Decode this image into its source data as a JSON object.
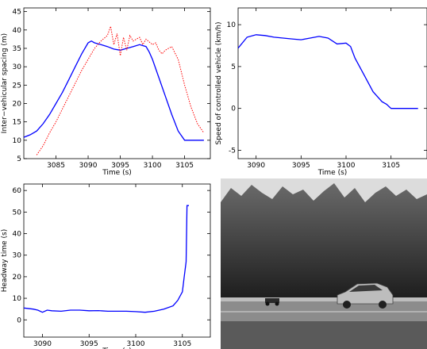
{
  "chart_data": [
    {
      "type": "line",
      "xlabel": "Time (s)",
      "ylabel": "Inter−vehicular spacing (m)",
      "xlim": [
        3080,
        3109
      ],
      "ylim": [
        5,
        46
      ],
      "xticks": [
        3085,
        3090,
        3095,
        3100,
        3105
      ],
      "yticks": [
        5,
        10,
        15,
        20,
        25,
        30,
        35,
        40,
        45
      ],
      "series": [
        {
          "style": "solid",
          "color": "#0000ff",
          "points": [
            [
              3080.0,
              10.8
            ],
            [
              3081.0,
              11.5
            ],
            [
              3082.0,
              12.5
            ],
            [
              3083.0,
              14.5
            ],
            [
              3084.0,
              17.0
            ],
            [
              3085.0,
              20.0
            ],
            [
              3086.0,
              23.0
            ],
            [
              3087.0,
              26.5
            ],
            [
              3088.0,
              30.0
            ],
            [
              3089.0,
              33.5
            ],
            [
              3090.0,
              36.5
            ],
            [
              3090.5,
              37.0
            ],
            [
              3091.0,
              36.5
            ],
            [
              3092.0,
              36.0
            ],
            [
              3093.0,
              35.5
            ],
            [
              3094.0,
              34.8
            ],
            [
              3095.0,
              34.5
            ],
            [
              3096.0,
              35.0
            ],
            [
              3097.0,
              35.5
            ],
            [
              3098.0,
              36.0
            ],
            [
              3099.0,
              35.5
            ],
            [
              3099.5,
              34.0
            ],
            [
              3100.0,
              32.0
            ],
            [
              3101.0,
              27.0
            ],
            [
              3102.0,
              22.0
            ],
            [
              3103.0,
              17.0
            ],
            [
              3104.0,
              12.5
            ],
            [
              3105.0,
              10.0
            ],
            [
              3106.0,
              10.0
            ],
            [
              3108.0,
              10.0
            ]
          ]
        },
        {
          "style": "dotted",
          "color": "#ff0000",
          "points": [
            [
              3082.0,
              6.0
            ],
            [
              3083.0,
              8.5
            ],
            [
              3084.0,
              12.0
            ],
            [
              3085.0,
              15.0
            ],
            [
              3086.0,
              18.5
            ],
            [
              3087.0,
              22.0
            ],
            [
              3088.0,
              25.5
            ],
            [
              3089.0,
              29.0
            ],
            [
              3090.0,
              32.0
            ],
            [
              3091.0,
              35.0
            ],
            [
              3092.0,
              37.0
            ],
            [
              3093.0,
              38.5
            ],
            [
              3093.5,
              41.0
            ],
            [
              3094.0,
              36.0
            ],
            [
              3094.5,
              39.0
            ],
            [
              3095.0,
              33.0
            ],
            [
              3095.5,
              38.0
            ],
            [
              3096.0,
              34.5
            ],
            [
              3096.5,
              38.5
            ],
            [
              3097.0,
              37.0
            ],
            [
              3098.0,
              38.0
            ],
            [
              3098.5,
              36.0
            ],
            [
              3099.0,
              37.5
            ],
            [
              3100.0,
              36.0
            ],
            [
              3100.5,
              36.5
            ],
            [
              3101.0,
              34.5
            ],
            [
              3101.5,
              33.5
            ],
            [
              3102.0,
              34.5
            ],
            [
              3103.0,
              35.5
            ],
            [
              3104.0,
              32.0
            ],
            [
              3105.0,
              25.0
            ],
            [
              3106.0,
              19.0
            ],
            [
              3107.0,
              14.5
            ],
            [
              3108.0,
              12.0
            ]
          ]
        }
      ]
    },
    {
      "type": "line",
      "xlabel": "Time (s)",
      "ylabel": "Speed of controlled vehicle (km/h)",
      "xlim": [
        3088,
        3109
      ],
      "ylim": [
        -6,
        12
      ],
      "xticks": [
        3090,
        3095,
        3100,
        3105
      ],
      "yticks": [
        -5,
        0,
        5,
        10
      ],
      "series": [
        {
          "style": "solid",
          "color": "#0000ff",
          "points": [
            [
              3088.0,
              7.2
            ],
            [
              3089.0,
              8.5
            ],
            [
              3090.0,
              8.8
            ],
            [
              3091.0,
              8.7
            ],
            [
              3092.0,
              8.5
            ],
            [
              3093.0,
              8.4
            ],
            [
              3094.0,
              8.3
            ],
            [
              3095.0,
              8.2
            ],
            [
              3096.0,
              8.4
            ],
            [
              3097.0,
              8.6
            ],
            [
              3098.0,
              8.4
            ],
            [
              3099.0,
              7.7
            ],
            [
              3100.0,
              7.8
            ],
            [
              3100.5,
              7.4
            ],
            [
              3101.0,
              6.0
            ],
            [
              3102.0,
              4.0
            ],
            [
              3103.0,
              2.0
            ],
            [
              3104.0,
              0.8
            ],
            [
              3104.5,
              0.5
            ],
            [
              3105.0,
              0.0
            ],
            [
              3106.0,
              0.0
            ],
            [
              3108.0,
              0.0
            ]
          ]
        }
      ]
    },
    {
      "type": "line",
      "xlabel": "Time (s)",
      "ylabel": "Headway time (s)",
      "xlim": [
        3088,
        3108
      ],
      "ylim": [
        -8,
        63
      ],
      "xticks": [
        3090,
        3095,
        3100,
        3105
      ],
      "yticks": [
        0,
        10,
        20,
        30,
        40,
        50,
        60
      ],
      "series": [
        {
          "style": "solid",
          "color": "#0000ff",
          "points": [
            [
              3088.0,
              5.5
            ],
            [
              3089.0,
              5.0
            ],
            [
              3089.5,
              4.5
            ],
            [
              3090.0,
              3.5
            ],
            [
              3090.5,
              4.5
            ],
            [
              3091.0,
              4.2
            ],
            [
              3092.0,
              4.0
            ],
            [
              3093.0,
              4.5
            ],
            [
              3094.0,
              4.5
            ],
            [
              3095.0,
              4.2
            ],
            [
              3096.0,
              4.3
            ],
            [
              3097.0,
              4.0
            ],
            [
              3098.0,
              4.0
            ],
            [
              3099.0,
              4.0
            ],
            [
              3100.0,
              3.8
            ],
            [
              3101.0,
              3.5
            ],
            [
              3102.0,
              4.0
            ],
            [
              3103.0,
              5.0
            ],
            [
              3104.0,
              6.5
            ],
            [
              3104.5,
              9.0
            ],
            [
              3105.0,
              13.0
            ],
            [
              3105.2,
              20.0
            ],
            [
              3105.4,
              27.0
            ],
            [
              3105.5,
              53.0
            ],
            [
              3105.7,
              53.0
            ]
          ]
        }
      ]
    }
  ],
  "photo": {
    "description_icon": "photo-icon"
  }
}
